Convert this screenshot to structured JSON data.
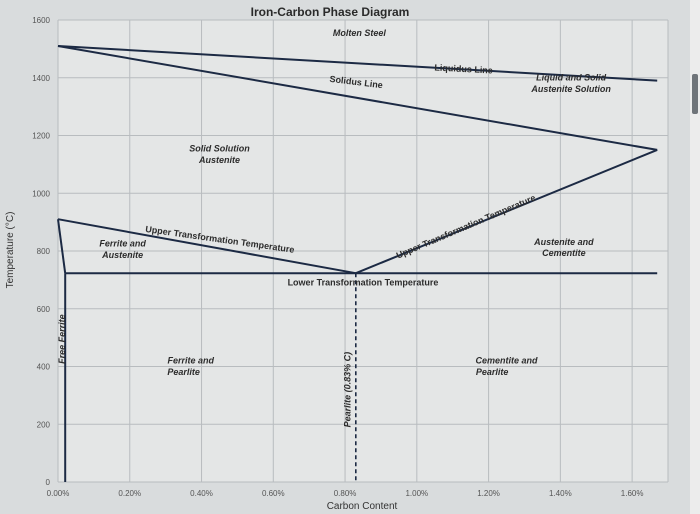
{
  "chart_data": {
    "type": "line",
    "title": "Iron-Carbon Phase Diagram",
    "xlabel": "Carbon Content",
    "ylabel": "Temperature (°C)",
    "xlim": [
      0,
      1.7
    ],
    "ylim": [
      0,
      1600
    ],
    "x_ticks": [
      {
        "value": 0.0,
        "label": "0.00%"
      },
      {
        "value": 0.2,
        "label": "0.20%"
      },
      {
        "value": 0.4,
        "label": "0.40%"
      },
      {
        "value": 0.6,
        "label": "0.60%"
      },
      {
        "value": 0.8,
        "label": "0.80%"
      },
      {
        "value": 1.0,
        "label": "1.00%"
      },
      {
        "value": 1.2,
        "label": "1.20%"
      },
      {
        "value": 1.4,
        "label": "1.40%"
      },
      {
        "value": 1.6,
        "label": "1.60%"
      }
    ],
    "y_ticks": [
      {
        "value": 0,
        "label": "0"
      },
      {
        "value": 200,
        "label": "200"
      },
      {
        "value": 400,
        "label": "400"
      },
      {
        "value": 600,
        "label": "600"
      },
      {
        "value": 800,
        "label": "800"
      },
      {
        "value": 1000,
        "label": "1000"
      },
      {
        "value": 1200,
        "label": "1200"
      },
      {
        "value": 1400,
        "label": "1400"
      },
      {
        "value": 1600,
        "label": "1600"
      }
    ],
    "grid": true,
    "series": [
      {
        "name": "Liquidus Line",
        "x": [
          0.0,
          1.67
        ],
        "y": [
          1510,
          1390
        ]
      },
      {
        "name": "Solidus Line",
        "x": [
          0.0,
          1.67
        ],
        "y": [
          1510,
          1150
        ]
      },
      {
        "name": "Upper Transformation Temperature",
        "x": [
          0.0,
          0.83
        ],
        "y": [
          910,
          723
        ]
      },
      {
        "name": "Upper Transformation Temperature",
        "x": [
          0.83,
          1.67
        ],
        "y": [
          723,
          1150
        ]
      },
      {
        "name": "Lower Transformation Temperature",
        "x": [
          0.02,
          1.67
        ],
        "y": [
          723,
          723
        ]
      },
      {
        "name": "Free Ferrite",
        "x": [
          0.0,
          0.02
        ],
        "y": [
          910,
          723
        ]
      },
      {
        "name": "Free Ferrite",
        "x": [
          0.02,
          0.02
        ],
        "y": [
          723,
          0
        ]
      },
      {
        "name": "Pearlite (0.83% C)",
        "x": [
          0.83,
          0.83
        ],
        "y": [
          723,
          0
        ],
        "style": "dashed"
      }
    ],
    "annotations": [
      {
        "text": "Molten Steel",
        "x": 0.84,
        "y": 1545
      },
      {
        "text": "Liquidus Line",
        "x": 1.13,
        "y": 1420
      },
      {
        "text": "Solidus Line",
        "x": 0.83,
        "y": 1375
      },
      {
        "text": "Liquid and Solid",
        "x": 1.43,
        "y": 1390
      },
      {
        "text": "Austenite Solution",
        "x": 1.43,
        "y": 1350
      },
      {
        "text": "Solid Solution",
        "x": 0.45,
        "y": 1145
      },
      {
        "text": "Austenite",
        "x": 0.45,
        "y": 1105
      },
      {
        "text": "Upper Transformation Temperature",
        "x": 0.45,
        "y": 830
      },
      {
        "text": "Ferrite and",
        "x": 0.18,
        "y": 815
      },
      {
        "text": "Austenite",
        "x": 0.18,
        "y": 775
      },
      {
        "text": "Upper Transformation Temperature",
        "x": 1.14,
        "y": 875
      },
      {
        "text": "Austenite and",
        "x": 1.41,
        "y": 820
      },
      {
        "text": "Cementite",
        "x": 1.41,
        "y": 782
      },
      {
        "text": "Lower Transformation Temperature",
        "x": 0.85,
        "y": 680
      },
      {
        "text": "Free Ferrite",
        "x": 0.02,
        "y": 495
      },
      {
        "text": "Ferrite and",
        "x": 0.37,
        "y": 410
      },
      {
        "text": "Pearlite",
        "x": 0.35,
        "y": 370
      },
      {
        "text": "Pearlite (0.83% C)",
        "x": 0.815,
        "y": 320
      },
      {
        "text": "Cementite and",
        "x": 1.25,
        "y": 410
      },
      {
        "text": "Pearlite",
        "x": 1.21,
        "y": 370
      }
    ]
  }
}
